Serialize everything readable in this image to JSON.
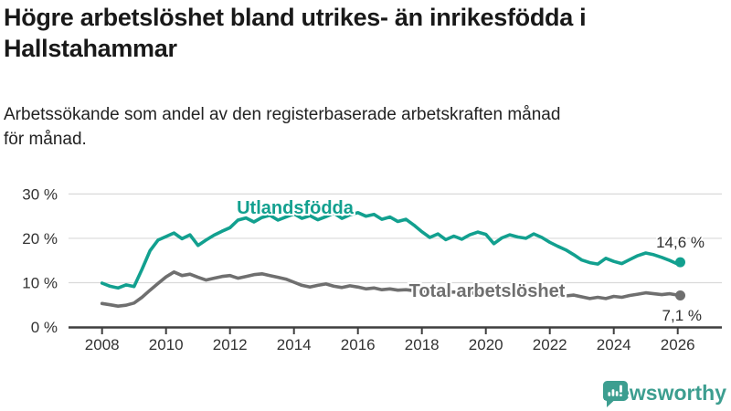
{
  "header": {
    "title": "Högre arbetslöshet bland utrikes- än inrikesfödda i\nHallstahammar",
    "subtitle": "Arbetssökande som andel av den registerbaserade arbetskraften månad\nför månad."
  },
  "chart_data": {
    "type": "line",
    "grid": "horizontal",
    "legend_position": "inline-labels",
    "ylim": [
      0,
      30
    ],
    "xlim": [
      2007.9,
      2026.2
    ],
    "yticks": [
      {
        "label": "0 %",
        "value": 0
      },
      {
        "label": "10 %",
        "value": 10
      },
      {
        "label": "20 %",
        "value": 20
      },
      {
        "label": "30 %",
        "value": 30
      }
    ],
    "xticks": [
      {
        "label": "2008",
        "value": 2008
      },
      {
        "label": "2010",
        "value": 2010
      },
      {
        "label": "2012",
        "value": 2012
      },
      {
        "label": "2014",
        "value": 2014
      },
      {
        "label": "2016",
        "value": 2016
      },
      {
        "label": "2018",
        "value": 2018
      },
      {
        "label": "2020",
        "value": 2020
      },
      {
        "label": "2022",
        "value": 2022
      },
      {
        "label": "2024",
        "value": 2024
      },
      {
        "label": "2026",
        "value": 2026
      }
    ],
    "x": [
      2008,
      2008.25,
      2008.5,
      2008.75,
      2009,
      2009.25,
      2009.5,
      2009.75,
      2010,
      2010.25,
      2010.5,
      2010.75,
      2011,
      2011.25,
      2011.5,
      2011.75,
      2012,
      2012.25,
      2012.5,
      2012.75,
      2013,
      2013.25,
      2013.5,
      2013.75,
      2014,
      2014.25,
      2014.5,
      2014.75,
      2015,
      2015.25,
      2015.5,
      2015.75,
      2016,
      2016.25,
      2016.5,
      2016.75,
      2017,
      2017.25,
      2017.5,
      2017.75,
      2018,
      2018.25,
      2018.5,
      2018.75,
      2019,
      2019.25,
      2019.5,
      2019.75,
      2020,
      2020.25,
      2020.5,
      2020.75,
      2021,
      2021.25,
      2021.5,
      2021.75,
      2022,
      2022.25,
      2022.5,
      2022.75,
      2023,
      2023.25,
      2023.5,
      2023.75,
      2024,
      2024.25,
      2024.5,
      2024.75,
      2025,
      2025.25,
      2025.5,
      2025.75,
      2026,
      2026.08
    ],
    "series": [
      {
        "name": "Utlandsfödda",
        "color": "#12a08f",
        "end_label": "14,6 %",
        "end_value": 14.6,
        "values": [
          9.9,
          9.2,
          8.8,
          9.5,
          9.1,
          13.0,
          17.2,
          19.6,
          20.4,
          21.2,
          19.9,
          20.8,
          18.4,
          19.6,
          20.7,
          21.6,
          22.4,
          24.1,
          24.6,
          23.7,
          24.7,
          25.2,
          24.1,
          24.8,
          25.5,
          24.5,
          25.1,
          24.2,
          24.9,
          25.7,
          24.5,
          25.3,
          25.8,
          25.0,
          25.4,
          24.3,
          24.8,
          23.8,
          24.3,
          23.0,
          21.5,
          20.2,
          21.0,
          19.7,
          20.5,
          19.8,
          20.8,
          21.4,
          20.9,
          18.8,
          20.1,
          20.8,
          20.3,
          20.0,
          21.0,
          20.2,
          19.1,
          18.2,
          17.4,
          16.3,
          15.1,
          14.5,
          14.2,
          15.5,
          14.8,
          14.3,
          15.2,
          16.1,
          16.7,
          16.3,
          15.7,
          15.0,
          14.2,
          14.6
        ]
      },
      {
        "name": "Total arbetslöshet",
        "color": "#6f6f6f",
        "end_label": "7,1 %",
        "end_value": 7.1,
        "values": [
          5.3,
          5.0,
          4.7,
          4.9,
          5.4,
          6.7,
          8.3,
          9.8,
          11.3,
          12.4,
          11.6,
          11.9,
          11.2,
          10.6,
          11.0,
          11.4,
          11.6,
          11.0,
          11.4,
          11.8,
          12.0,
          11.6,
          11.2,
          10.8,
          10.1,
          9.4,
          9.0,
          9.4,
          9.7,
          9.2,
          8.9,
          9.3,
          9.0,
          8.6,
          8.8,
          8.4,
          8.6,
          8.3,
          8.4,
          8.2,
          8.0,
          8.1,
          7.9,
          7.8,
          7.9,
          7.7,
          7.6,
          7.7,
          7.8,
          8.0,
          7.9,
          7.7,
          7.6,
          7.5,
          7.4,
          7.3,
          7.2,
          7.1,
          7.0,
          7.2,
          6.8,
          6.4,
          6.7,
          6.4,
          6.9,
          6.7,
          7.1,
          7.4,
          7.7,
          7.5,
          7.3,
          7.5,
          7.2,
          7.1
        ]
      }
    ]
  },
  "footer": {
    "brand": "Newsworthy",
    "brand_color": "#3d9e90",
    "logo_icon": "bar-chart-speech-bubble-icon"
  }
}
